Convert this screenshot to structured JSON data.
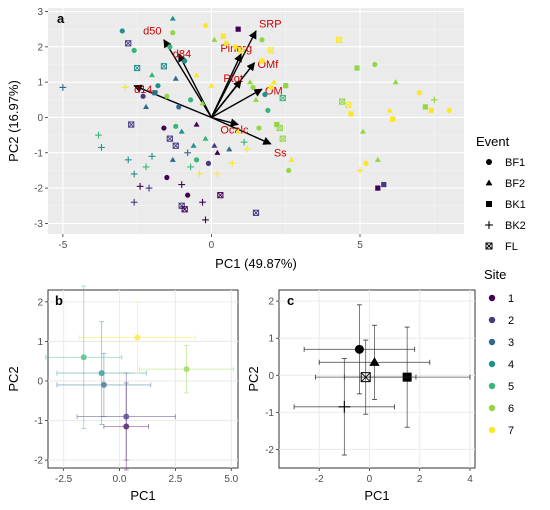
{
  "colors": {
    "panel_bg": "#ebebeb",
    "grid_major": "#ffffff",
    "grid_minor": "#f4f4f4",
    "axis_text": "#4d4d4d",
    "loading_label": "#cc0000",
    "arrow": "#000000",
    "sites": [
      "#440154",
      "#443983",
      "#31688e",
      "#21918c",
      "#35b779",
      "#90d743",
      "#fde725"
    ]
  },
  "chart_data": [
    {
      "id": "a",
      "type": "scatter",
      "panel_label": "a",
      "xlabel": "PC1 (49.87%)",
      "ylabel": "PC2 (16.97%)",
      "xlim": [
        -5.5,
        8.5
      ],
      "ylim": [
        -3.3,
        3.1
      ],
      "xticks": [
        -5,
        0,
        5
      ],
      "yticks": [
        -3,
        -2,
        -1,
        0,
        1,
        2,
        3
      ],
      "grid": true,
      "loadings": [
        {
          "name": "SRP",
          "x": 1.5,
          "y": 2.45,
          "lx": 1.6,
          "ly": 2.55
        },
        {
          "name": "d50",
          "x": -1.6,
          "y": 2.2,
          "lx": -2.3,
          "ly": 2.35
        },
        {
          "name": "Pinorg",
          "x": 1.0,
          "y": 1.8,
          "lx": 0.3,
          "ly": 1.85
        },
        {
          "name": "d84",
          "x": -1.1,
          "y": 1.8,
          "lx": -1.3,
          "ly": 1.7
        },
        {
          "name": "OMf",
          "x": 1.45,
          "y": 1.55,
          "lx": 1.55,
          "ly": 1.4
        },
        {
          "name": "Ptot",
          "x": 1.0,
          "y": 1.05,
          "lx": 0.4,
          "ly": 1.0
        },
        {
          "name": "d14",
          "x": -2.6,
          "y": 0.9,
          "lx": -2.6,
          "ly": 0.7
        },
        {
          "name": "OM",
          "x": 1.7,
          "y": 0.8,
          "lx": 1.8,
          "ly": 0.65
        },
        {
          "name": "Ocalc",
          "x": 0.9,
          "y": -0.2,
          "lx": 0.3,
          "ly": -0.45
        },
        {
          "name": "Ss",
          "x": 2.0,
          "y": -0.75,
          "lx": 2.1,
          "ly": -1.1
        }
      ],
      "points": [
        {
          "x": -5.0,
          "y": 0.85,
          "site": 3,
          "event": "BK2"
        },
        {
          "x": -3.8,
          "y": -0.5,
          "site": 5,
          "event": "BK2"
        },
        {
          "x": -3.7,
          "y": -0.85,
          "site": 4,
          "event": "BK2"
        },
        {
          "x": -3.0,
          "y": 2.45,
          "site": 4,
          "event": "BF1"
        },
        {
          "x": -2.8,
          "y": 2.1,
          "site": 2,
          "event": "FL"
        },
        {
          "x": -2.6,
          "y": 1.9,
          "site": 5,
          "event": "BF1"
        },
        {
          "x": -2.5,
          "y": 1.4,
          "site": 4,
          "event": "FL"
        },
        {
          "x": -2.9,
          "y": 0.85,
          "site": 7,
          "event": "BK2"
        },
        {
          "x": -2.7,
          "y": -0.2,
          "site": 2,
          "event": "FL"
        },
        {
          "x": -2.8,
          "y": -1.2,
          "site": 4,
          "event": "BK2"
        },
        {
          "x": -2.6,
          "y": -1.6,
          "site": 4,
          "event": "BK2"
        },
        {
          "x": -2.6,
          "y": -2.4,
          "site": 2,
          "event": "BK2"
        },
        {
          "x": -2.4,
          "y": -1.95,
          "site": 1,
          "event": "BK2"
        },
        {
          "x": -2.2,
          "y": -1.4,
          "site": 5,
          "event": "BK2"
        },
        {
          "x": -2.1,
          "y": -2.0,
          "site": 2,
          "event": "BK2"
        },
        {
          "x": -2.0,
          "y": -1.1,
          "site": 4,
          "event": "BK2"
        },
        {
          "x": -2.3,
          "y": 0.6,
          "site": 2,
          "event": "BF1"
        },
        {
          "x": -2.2,
          "y": 0.3,
          "site": 3,
          "event": "BF2"
        },
        {
          "x": -2.0,
          "y": 1.2,
          "site": 5,
          "event": "BF2"
        },
        {
          "x": -1.9,
          "y": 0.7,
          "site": 3,
          "event": "BK1"
        },
        {
          "x": -1.8,
          "y": 0.9,
          "site": 4,
          "event": "BF1"
        },
        {
          "x": -1.6,
          "y": 1.45,
          "site": 4,
          "event": "FL"
        },
        {
          "x": -1.5,
          "y": 0.6,
          "site": 6,
          "event": "BF1"
        },
        {
          "x": -1.4,
          "y": 2.0,
          "site": 5,
          "event": "BF1"
        },
        {
          "x": -1.3,
          "y": 2.4,
          "site": 6,
          "event": "BF1"
        },
        {
          "x": -1.2,
          "y": 1.1,
          "site": 3,
          "event": "BF2"
        },
        {
          "x": -1.6,
          "y": -0.3,
          "site": 1,
          "event": "BF1"
        },
        {
          "x": -1.4,
          "y": -0.6,
          "site": 2,
          "event": "FL"
        },
        {
          "x": -1.3,
          "y": -1.2,
          "site": 3,
          "event": "BF2"
        },
        {
          "x": -1.5,
          "y": -1.7,
          "site": 1,
          "event": "BF1"
        },
        {
          "x": -1.2,
          "y": -0.8,
          "site": 2,
          "event": "FL"
        },
        {
          "x": -1.1,
          "y": 0.3,
          "site": 3,
          "event": "BF1"
        },
        {
          "x": -1.2,
          "y": -0.25,
          "site": 5,
          "event": "BF1"
        },
        {
          "x": -1.0,
          "y": -0.4,
          "site": 4,
          "event": "BF2"
        },
        {
          "x": -1.0,
          "y": -1.9,
          "site": 1,
          "event": "BK2"
        },
        {
          "x": -1.0,
          "y": -2.5,
          "site": 2,
          "event": "FL"
        },
        {
          "x": -0.9,
          "y": -2.6,
          "site": 1,
          "event": "FL"
        },
        {
          "x": -0.8,
          "y": -2.2,
          "site": 1,
          "event": "BF1"
        },
        {
          "x": -1.3,
          "y": 2.8,
          "site": 4,
          "event": "BF2"
        },
        {
          "x": -0.9,
          "y": 1.6,
          "site": 4,
          "event": "BF1"
        },
        {
          "x": -0.7,
          "y": 0.5,
          "site": 5,
          "event": "BF1"
        },
        {
          "x": -0.8,
          "y": -1.0,
          "site": 3,
          "event": "BK2"
        },
        {
          "x": -0.7,
          "y": -1.4,
          "site": 5,
          "event": "BK2"
        },
        {
          "x": -0.6,
          "y": -0.8,
          "site": 4,
          "event": "BF2"
        },
        {
          "x": -0.5,
          "y": -1.2,
          "site": 5,
          "event": "BF1"
        },
        {
          "x": -0.5,
          "y": -0.2,
          "site": 1,
          "event": "BF2"
        },
        {
          "x": -0.4,
          "y": -1.6,
          "site": 7,
          "event": "BK2"
        },
        {
          "x": -0.5,
          "y": 1.2,
          "site": 7,
          "event": "BF2"
        },
        {
          "x": -0.3,
          "y": 0.4,
          "site": 6,
          "event": "BF2"
        },
        {
          "x": -0.2,
          "y": -0.6,
          "site": 5,
          "event": "BF2"
        },
        {
          "x": -0.3,
          "y": -2.4,
          "site": 1,
          "event": "BK2"
        },
        {
          "x": -0.2,
          "y": -2.9,
          "site": 1,
          "event": "BK2"
        },
        {
          "x": -0.1,
          "y": -1.3,
          "site": 2,
          "event": "BF1"
        },
        {
          "x": 0.1,
          "y": 2.2,
          "site": 6,
          "event": "BF2"
        },
        {
          "x": -0.2,
          "y": 2.6,
          "site": 7,
          "event": "BF1"
        },
        {
          "x": 0.0,
          "y": 0.9,
          "site": 7,
          "event": "BF2"
        },
        {
          "x": 0.1,
          "y": -0.8,
          "site": 2,
          "event": "BF2"
        },
        {
          "x": 0.2,
          "y": -1.0,
          "site": 1,
          "event": "BF2"
        },
        {
          "x": 0.2,
          "y": -1.6,
          "site": 7,
          "event": "BK2"
        },
        {
          "x": 0.3,
          "y": -2.2,
          "site": 1,
          "event": "FL"
        },
        {
          "x": 0.4,
          "y": 2.3,
          "site": 7,
          "event": "BK1"
        },
        {
          "x": 0.5,
          "y": 2.1,
          "site": 7,
          "event": "BF1"
        },
        {
          "x": 0.6,
          "y": -0.9,
          "site": 3,
          "event": "BF2"
        },
        {
          "x": 0.7,
          "y": -1.3,
          "site": 7,
          "event": "BK2"
        },
        {
          "x": 0.8,
          "y": 2.0,
          "site": 7,
          "event": "BF1"
        },
        {
          "x": 0.9,
          "y": 2.5,
          "site": 1,
          "event": "BK1"
        },
        {
          "x": 1.0,
          "y": 1.9,
          "site": 7,
          "event": "FL"
        },
        {
          "x": 0.9,
          "y": -0.4,
          "site": 7,
          "event": "BF2"
        },
        {
          "x": 1.1,
          "y": -0.7,
          "site": 5,
          "event": "BK2"
        },
        {
          "x": 1.2,
          "y": -0.9,
          "site": 7,
          "event": "BK2"
        },
        {
          "x": 1.3,
          "y": 1.0,
          "site": 6,
          "event": "BF2"
        },
        {
          "x": 1.4,
          "y": 0.85,
          "site": 6,
          "event": "BF1"
        },
        {
          "x": 1.5,
          "y": 0.5,
          "site": 6,
          "event": "BF2"
        },
        {
          "x": 1.6,
          "y": -0.3,
          "site": 6,
          "event": "BF1"
        },
        {
          "x": 1.7,
          "y": 2.2,
          "site": 6,
          "event": "BF1"
        },
        {
          "x": 1.8,
          "y": 0.65,
          "site": 4,
          "event": "BF1"
        },
        {
          "x": 1.9,
          "y": 0.2,
          "site": 5,
          "event": "BF1"
        },
        {
          "x": 2.0,
          "y": 0.85,
          "site": 7,
          "event": "BF1"
        },
        {
          "x": 2.1,
          "y": 1.0,
          "site": 7,
          "event": "BF2"
        },
        {
          "x": 2.2,
          "y": -0.2,
          "site": 6,
          "event": "BK1"
        },
        {
          "x": 2.3,
          "y": -0.3,
          "site": 6,
          "event": "FL"
        },
        {
          "x": 2.4,
          "y": -0.6,
          "site": 6,
          "event": "FL"
        },
        {
          "x": 2.0,
          "y": 1.9,
          "site": 7,
          "event": "FL"
        },
        {
          "x": 2.4,
          "y": 0.55,
          "site": 5,
          "event": "FL"
        },
        {
          "x": 2.5,
          "y": 0.9,
          "site": 6,
          "event": "BK1"
        },
        {
          "x": 1.7,
          "y": 1.6,
          "site": 7,
          "event": "BK1"
        },
        {
          "x": 2.6,
          "y": -1.5,
          "site": 6,
          "event": "BF1"
        },
        {
          "x": 2.7,
          "y": -1.2,
          "site": 7,
          "event": "BF2"
        },
        {
          "x": 1.5,
          "y": -2.7,
          "site": 2,
          "event": "FL"
        },
        {
          "x": 4.3,
          "y": 2.2,
          "site": 7,
          "event": "FL"
        },
        {
          "x": 4.4,
          "y": 0.45,
          "site": 6,
          "event": "FL"
        },
        {
          "x": 4.6,
          "y": 0.35,
          "site": 7,
          "event": "FL"
        },
        {
          "x": 4.7,
          "y": 0.1,
          "site": 7,
          "event": "BK1"
        },
        {
          "x": 4.9,
          "y": 1.4,
          "site": 6,
          "event": "BK1"
        },
        {
          "x": 5.0,
          "y": -1.5,
          "site": 7,
          "event": "BK2"
        },
        {
          "x": 5.1,
          "y": -0.4,
          "site": 6,
          "event": "BF2"
        },
        {
          "x": 5.2,
          "y": -1.3,
          "site": 7,
          "event": "BF1"
        },
        {
          "x": 5.5,
          "y": 1.5,
          "site": 6,
          "event": "BF1"
        },
        {
          "x": 5.6,
          "y": -1.2,
          "site": 6,
          "event": "BF2"
        },
        {
          "x": 5.6,
          "y": -2.0,
          "site": 1,
          "event": "BK1"
        },
        {
          "x": 5.8,
          "y": -1.9,
          "site": 2,
          "event": "BK1"
        },
        {
          "x": 6.0,
          "y": 0.2,
          "site": 7,
          "event": "BF2"
        },
        {
          "x": 6.1,
          "y": -0.05,
          "site": 7,
          "event": "BK1"
        },
        {
          "x": 6.2,
          "y": 1.0,
          "site": 6,
          "event": "BF2"
        },
        {
          "x": 7.0,
          "y": 0.7,
          "site": 7,
          "event": "BF1"
        },
        {
          "x": 7.2,
          "y": 0.3,
          "site": 6,
          "event": "BK1"
        },
        {
          "x": 7.4,
          "y": 0.2,
          "site": 7,
          "event": "BK1"
        },
        {
          "x": 7.5,
          "y": 0.5,
          "site": 6,
          "event": "BK2"
        },
        {
          "x": 8.0,
          "y": 0.2,
          "site": 7,
          "event": "BF1"
        }
      ]
    },
    {
      "id": "b",
      "type": "scatter",
      "panel_label": "b",
      "xlabel": "PC1",
      "ylabel": "PC2",
      "xlim": [
        -3.2,
        5.3
      ],
      "ylim": [
        -2.2,
        2.3
      ],
      "xticks": [
        -2.5,
        0.0,
        2.5,
        5.0
      ],
      "yticks": [
        -2,
        -1,
        0,
        1,
        2
      ],
      "grid": true,
      "points": [
        {
          "site": 1,
          "x": 0.3,
          "y": -1.15,
          "xerr": 1.0,
          "yerr": 1.1
        },
        {
          "site": 2,
          "x": 0.3,
          "y": -0.9,
          "xerr": 2.2,
          "yerr": 1.1
        },
        {
          "site": 3,
          "x": -0.7,
          "y": -0.1,
          "xerr": 2.1,
          "yerr": 0.8
        },
        {
          "site": 4,
          "x": -0.8,
          "y": 0.2,
          "xerr": 2.0,
          "yerr": 1.3
        },
        {
          "site": 5,
          "x": -1.6,
          "y": 0.6,
          "xerr": 1.7,
          "yerr": 1.8
        },
        {
          "site": 6,
          "x": 3.0,
          "y": 0.3,
          "xerr": 2.1,
          "yerr": 0.6
        },
        {
          "site": 7,
          "x": 0.8,
          "y": 1.1,
          "xerr": 2.6,
          "yerr": 0.9
        }
      ]
    },
    {
      "id": "c",
      "type": "scatter",
      "panel_label": "c",
      "xlabel": "PC1",
      "ylabel": "PC2",
      "xlim": [
        -3.6,
        4.2
      ],
      "ylim": [
        -2.5,
        2.3
      ],
      "xticks": [
        -2,
        0,
        2,
        4
      ],
      "yticks": [
        -2,
        -1,
        0,
        1,
        2
      ],
      "grid": true,
      "points": [
        {
          "event": "BF1",
          "x": -0.4,
          "y": 0.7,
          "xerr": 2.2,
          "yerr": 1.2
        },
        {
          "event": "BF2",
          "x": 0.2,
          "y": 0.35,
          "xerr": 2.2,
          "yerr": 1.0
        },
        {
          "event": "BK1",
          "x": 1.5,
          "y": -0.05,
          "xerr": 2.5,
          "yerr": 1.35
        },
        {
          "event": "BK2",
          "x": -1.0,
          "y": -0.85,
          "xerr": 2.0,
          "yerr": 1.3
        },
        {
          "event": "FL",
          "x": -0.15,
          "y": -0.05,
          "xerr": 2.0,
          "yerr": 1.0
        }
      ]
    }
  ],
  "legend_event": {
    "title": "Event",
    "items": [
      {
        "label": "BF1",
        "shape": "circle"
      },
      {
        "label": "BF2",
        "shape": "triangle"
      },
      {
        "label": "BK1",
        "shape": "square"
      },
      {
        "label": "BK2",
        "shape": "plus"
      },
      {
        "label": "FL",
        "shape": "square-cross"
      }
    ]
  },
  "legend_site": {
    "title": "Site",
    "items": [
      "1",
      "2",
      "3",
      "4",
      "5",
      "6",
      "7"
    ]
  }
}
